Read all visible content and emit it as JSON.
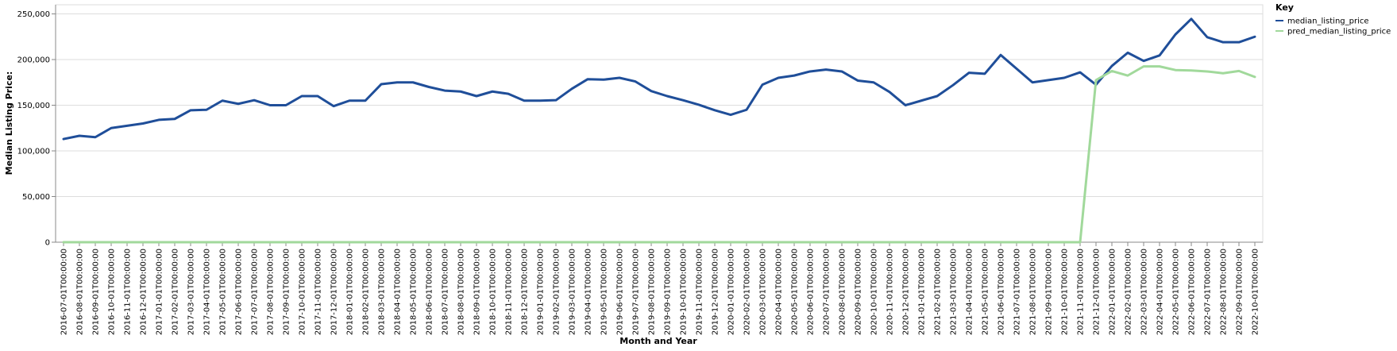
{
  "chart_data": {
    "type": "line",
    "title": "",
    "xlabel": "Month and Year",
    "ylabel": "Median Listing Price:",
    "ylim": [
      0,
      260000
    ],
    "yticks": [
      0,
      50000,
      100000,
      150000,
      200000,
      250000
    ],
    "ytick_labels": [
      "0",
      "50,000",
      "100,000",
      "150,000",
      "200,000",
      "250,000"
    ],
    "grid": true,
    "legend": {
      "title": "Key",
      "placement": "top-right"
    },
    "x": [
      "2016-07-01T00:00:00",
      "2016-08-01T00:00:00",
      "2016-09-01T00:00:00",
      "2016-10-01T00:00:00",
      "2016-11-01T00:00:00",
      "2016-12-01T00:00:00",
      "2017-01-01T00:00:00",
      "2017-02-01T00:00:00",
      "2017-03-01T00:00:00",
      "2017-04-01T00:00:00",
      "2017-05-01T00:00:00",
      "2017-06-01T00:00:00",
      "2017-07-01T00:00:00",
      "2017-08-01T00:00:00",
      "2017-09-01T00:00:00",
      "2017-10-01T00:00:00",
      "2017-11-01T00:00:00",
      "2017-12-01T00:00:00",
      "2018-01-01T00:00:00",
      "2018-02-01T00:00:00",
      "2018-03-01T00:00:00",
      "2018-04-01T00:00:00",
      "2018-05-01T00:00:00",
      "2018-06-01T00:00:00",
      "2018-07-01T00:00:00",
      "2018-08-01T00:00:00",
      "2018-09-01T00:00:00",
      "2018-10-01T00:00:00",
      "2018-11-01T00:00:00",
      "2018-12-01T00:00:00",
      "2019-01-01T00:00:00",
      "2019-02-01T00:00:00",
      "2019-03-01T00:00:00",
      "2019-04-01T00:00:00",
      "2019-05-01T00:00:00",
      "2019-06-01T00:00:00",
      "2019-07-01T00:00:00",
      "2019-08-01T00:00:00",
      "2019-09-01T00:00:00",
      "2019-10-01T00:00:00",
      "2019-11-01T00:00:00",
      "2019-12-01T00:00:00",
      "2020-01-01T00:00:00",
      "2020-02-01T00:00:00",
      "2020-03-01T00:00:00",
      "2020-04-01T00:00:00",
      "2020-05-01T00:00:00",
      "2020-06-01T00:00:00",
      "2020-07-01T00:00:00",
      "2020-08-01T00:00:00",
      "2020-09-01T00:00:00",
      "2020-10-01T00:00:00",
      "2020-11-01T00:00:00",
      "2020-12-01T00:00:00",
      "2021-01-01T00:00:00",
      "2021-02-01T00:00:00",
      "2021-03-01T00:00:00",
      "2021-04-01T00:00:00",
      "2021-05-01T00:00:00",
      "2021-06-01T00:00:00",
      "2021-07-01T00:00:00",
      "2021-08-01T00:00:00",
      "2021-09-01T00:00:00",
      "2021-10-01T00:00:00",
      "2021-11-01T00:00:00",
      "2021-12-01T00:00:00",
      "2022-01-01T00:00:00",
      "2022-02-01T00:00:00",
      "2022-03-01T00:00:00",
      "2022-04-01T00:00:00",
      "2022-05-01T00:00:00",
      "2022-06-01T00:00:00",
      "2022-07-01T00:00:00",
      "2022-08-01T00:00:00",
      "2022-09-01T00:00:00",
      "2022-10-01T00:00:00"
    ],
    "series": [
      {
        "name": "median_listing_price",
        "color": "#1f4e99",
        "values": [
          113000,
          116500,
          115000,
          125000,
          127500,
          130000,
          134000,
          135000,
          144500,
          145000,
          155000,
          151500,
          155500,
          150000,
          150000,
          160000,
          160000,
          149000,
          155000,
          155000,
          173000,
          175000,
          175000,
          170000,
          166000,
          165000,
          160000,
          165000,
          162500,
          155000,
          155000,
          155500,
          168000,
          178500,
          178000,
          180000,
          176000,
          165500,
          160000,
          155500,
          150500,
          144500,
          139500,
          145000,
          172500,
          180000,
          182500,
          187000,
          189000,
          187000,
          177000,
          175000,
          164500,
          150000,
          155000,
          160000,
          172000,
          185500,
          184500,
          205000,
          190000,
          175000,
          177500,
          180000,
          186000,
          172500,
          193000,
          207500,
          198500,
          204500,
          227500,
          244500,
          224500,
          219000,
          219000,
          225000
        ]
      },
      {
        "name": "pred_median_listing_price",
        "color": "#a1d99b",
        "values": [
          0,
          0,
          0,
          0,
          0,
          0,
          0,
          0,
          0,
          0,
          0,
          0,
          0,
          0,
          0,
          0,
          0,
          0,
          0,
          0,
          0,
          0,
          0,
          0,
          0,
          0,
          0,
          0,
          0,
          0,
          0,
          0,
          0,
          0,
          0,
          0,
          0,
          0,
          0,
          0,
          0,
          0,
          0,
          0,
          0,
          0,
          0,
          0,
          0,
          0,
          0,
          0,
          0,
          0,
          0,
          0,
          0,
          0,
          0,
          0,
          0,
          0,
          0,
          0,
          0,
          177500,
          187500,
          182500,
          192500,
          192500,
          188500,
          188000,
          187000,
          185000,
          187500,
          181000
        ]
      }
    ]
  }
}
